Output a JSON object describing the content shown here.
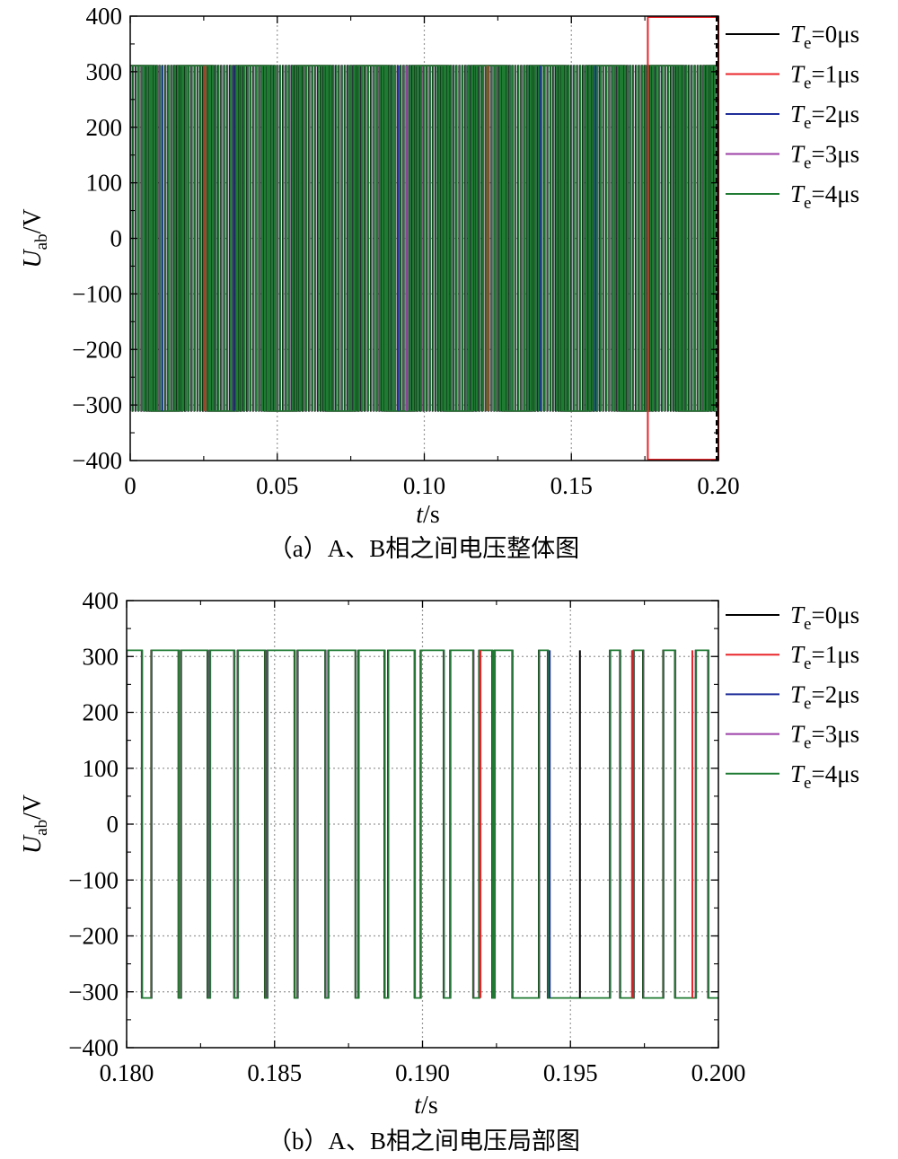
{
  "chart_data": [
    {
      "type": "line",
      "caption": "（a）A、B相之间电压整体图",
      "xlabel": "t/s",
      "xlabel_var": "t",
      "xlabel_unit": "/s",
      "ylabel": "Uab/V",
      "ylabel_var": "U",
      "ylabel_sub": "ab",
      "ylabel_unit": "/V",
      "xlim": [
        0,
        0.2
      ],
      "ylim": [
        -400,
        400
      ],
      "xticks": [
        0,
        0.05,
        0.1,
        0.15,
        0.2
      ],
      "xtick_labels": [
        "0",
        "0.05",
        "0.10",
        "0.15",
        "0.20"
      ],
      "yticks": [
        -400,
        -300,
        -200,
        -100,
        0,
        100,
        200,
        300,
        400
      ],
      "ytick_labels": [
        "−400",
        "−300",
        "−200",
        "−100",
        "0",
        "100",
        "200",
        "300",
        "400"
      ],
      "grid": true,
      "legend_position": "right",
      "dc_level": 311,
      "switching_period": 0.001,
      "zoom_region": {
        "x": [
          0.176,
          0.2
        ],
        "y": [
          -400,
          400
        ]
      },
      "series": [
        {
          "name": "Te=0μs",
          "var": "T",
          "sub": "e",
          "value": "=0μs",
          "color": "#000000"
        },
        {
          "name": "Te=1μs",
          "var": "T",
          "sub": "e",
          "value": "=1μs",
          "color": "#e8262b"
        },
        {
          "name": "Te=2μs",
          "var": "T",
          "sub": "e",
          "value": "=2μs",
          "color": "#1f2e9a"
        },
        {
          "name": "Te=3μs",
          "var": "T",
          "sub": "e",
          "value": "=3μs",
          "color": "#9b3fa6"
        },
        {
          "name": "Te=4μs",
          "var": "T",
          "sub": "e",
          "value": "=4μs",
          "color": "#1f7a32"
        }
      ]
    },
    {
      "type": "line",
      "caption": "（b）A、B相之间电压局部图",
      "xlabel": "t/s",
      "xlabel_var": "t",
      "xlabel_unit": "/s",
      "ylabel": "Uab/V",
      "ylabel_var": "U",
      "ylabel_sub": "ab",
      "ylabel_unit": "/V",
      "xlim": [
        0.18,
        0.2
      ],
      "ylim": [
        -400,
        400
      ],
      "xticks": [
        0.18,
        0.185,
        0.19,
        0.195,
        0.2
      ],
      "xtick_labels": [
        "0.180",
        "0.185",
        "0.190",
        "0.195",
        "0.200"
      ],
      "yticks": [
        -400,
        -300,
        -200,
        -100,
        0,
        100,
        200,
        300,
        400
      ],
      "ytick_labels": [
        "−400",
        "−300",
        "−200",
        "−100",
        "0",
        "100",
        "200",
        "300",
        "400"
      ],
      "grid": true,
      "legend_position": "right",
      "dc_level": 311,
      "pulses": [
        {
          "t_on": 0.18,
          "t_off": 0.18052
        },
        {
          "t_on": 0.18084,
          "t_off": 0.18176
        },
        {
          "t_on": 0.18184,
          "t_off": 0.18274
        },
        {
          "t_on": 0.18282,
          "t_off": 0.18364
        },
        {
          "t_on": 0.18376,
          "t_off": 0.18468
        },
        {
          "t_on": 0.18476,
          "t_off": 0.18568
        },
        {
          "t_on": 0.18578,
          "t_off": 0.18672
        },
        {
          "t_on": 0.18682,
          "t_off": 0.18774
        },
        {
          "t_on": 0.18784,
          "t_off": 0.18872
        },
        {
          "t_on": 0.18884,
          "t_off": 0.18974
        },
        {
          "t_on": 0.18994,
          "t_off": 0.19072
        },
        {
          "t_on": 0.19094,
          "t_off": 0.19172
        },
        {
          "t_on": 0.19192,
          "t_off": 0.19236
        },
        {
          "t_on": 0.19244,
          "t_off": 0.19304
        },
        {
          "t_on": 0.19394,
          "t_off": 0.19424
        },
        {
          "t_on": 0.19634,
          "t_off": 0.19668
        },
        {
          "t_on": 0.19714,
          "t_off": 0.19746
        },
        {
          "t_on": 0.19814,
          "t_off": 0.19854
        },
        {
          "t_on": 0.19924,
          "t_off": 0.19966
        }
      ],
      "variant_spikes": [
        {
          "t": 0.1943,
          "series": 2
        },
        {
          "t": 0.19532,
          "series": 0
        },
        {
          "t": 0.19708,
          "series": 1
        },
        {
          "t": 0.19912,
          "series": 1
        },
        {
          "t": 0.19196,
          "series": 1
        }
      ],
      "series": [
        {
          "name": "Te=0μs",
          "var": "T",
          "sub": "e",
          "value": "=0μs",
          "color": "#000000"
        },
        {
          "name": "Te=1μs",
          "var": "T",
          "sub": "e",
          "value": "=1μs",
          "color": "#e8262b"
        },
        {
          "name": "Te=2μs",
          "var": "T",
          "sub": "e",
          "value": "=2μs",
          "color": "#1f2e9a"
        },
        {
          "name": "Te=3μs",
          "var": "T",
          "sub": "e",
          "value": "=3μs",
          "color": "#9b3fa6"
        },
        {
          "name": "Te=4μs",
          "var": "T",
          "sub": "e",
          "value": "=4μs",
          "color": "#1f7a32"
        }
      ]
    }
  ]
}
